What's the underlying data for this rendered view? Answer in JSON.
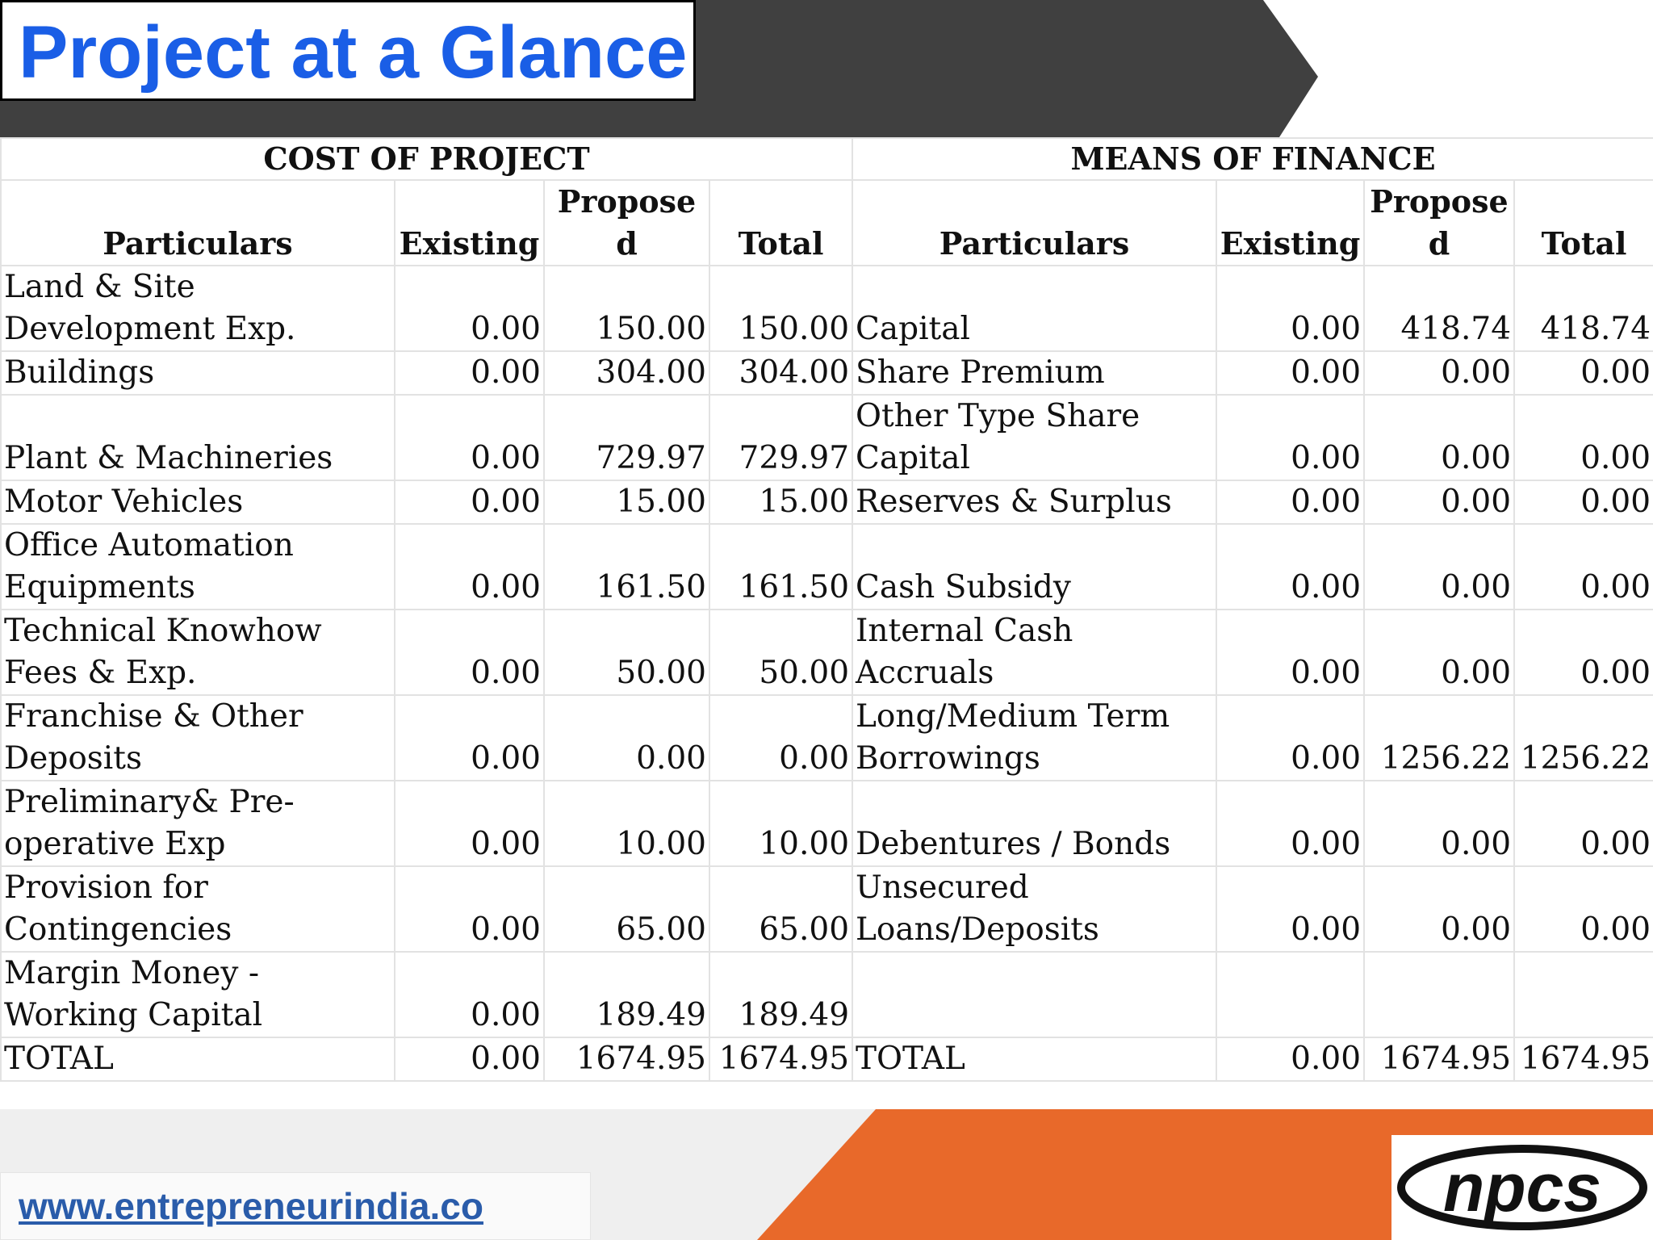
{
  "header": {
    "title": "Project at a Glance"
  },
  "table": {
    "groups": [
      "COST OF PROJECT",
      "MEANS OF FINANCE"
    ],
    "columns": [
      "Particulars",
      "Existing",
      "Proposed",
      "Total",
      "Particulars",
      "Existing",
      "Proposed",
      "Total"
    ],
    "rows": [
      [
        "Land & Site Development Exp.",
        "0.00",
        "150.00",
        "150.00",
        "Capital",
        "0.00",
        "418.74",
        "418.74"
      ],
      [
        "Buildings",
        "0.00",
        "304.00",
        "304.00",
        "Share Premium",
        "0.00",
        "0.00",
        "0.00"
      ],
      [
        "Plant & Machineries",
        "0.00",
        "729.97",
        "729.97",
        "Other Type Share Capital",
        "0.00",
        "0.00",
        "0.00"
      ],
      [
        "Motor Vehicles",
        "0.00",
        "15.00",
        "15.00",
        "Reserves & Surplus",
        "0.00",
        "0.00",
        "0.00"
      ],
      [
        "Office Automation Equipments",
        "0.00",
        "161.50",
        "161.50",
        "Cash Subsidy",
        "0.00",
        "0.00",
        "0.00"
      ],
      [
        "Technical Knowhow Fees & Exp.",
        "0.00",
        "50.00",
        "50.00",
        "Internal Cash Accruals",
        "0.00",
        "0.00",
        "0.00"
      ],
      [
        "Franchise & Other Deposits",
        "0.00",
        "0.00",
        "0.00",
        "Long/Medium Term Borrowings",
        "0.00",
        "1256.22",
        "1256.22"
      ],
      [
        "Preliminary& Pre-operative Exp",
        "0.00",
        "10.00",
        "10.00",
        "Debentures / Bonds",
        "0.00",
        "0.00",
        "0.00"
      ],
      [
        "Provision for Contingencies",
        "0.00",
        "65.00",
        "65.00",
        "Unsecured Loans/Deposits",
        "0.00",
        "0.00",
        "0.00"
      ],
      [
        "Margin Money - Working Capital",
        "0.00",
        "189.49",
        "189.49"
      ],
      [
        "TOTAL",
        "0.00",
        "1674.95",
        "1674.95",
        "TOTAL",
        "0.00",
        "1674.95",
        "1674.95"
      ]
    ]
  },
  "footer": {
    "url": "www.entrepreneurindia.co",
    "logo": "npcs"
  }
}
